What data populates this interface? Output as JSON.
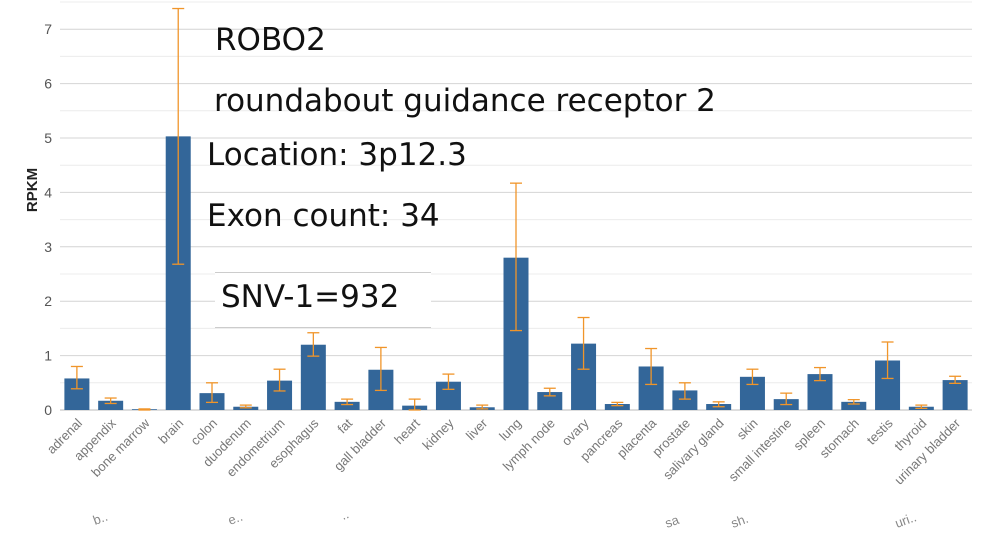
{
  "chart_data": {
    "type": "bar",
    "ylabel": "RPKM",
    "xlabel": "",
    "ylim": [
      0,
      7.5
    ],
    "yticks": [
      0,
      1,
      2,
      3,
      4,
      5,
      6,
      7
    ],
    "categories": [
      "adrenal",
      "appendix",
      "bone marrow",
      "brain",
      "colon",
      "duodenum",
      "endometrium",
      "esophagus",
      "fat",
      "gall bladder",
      "heart",
      "kidney",
      "liver",
      "lung",
      "lymph node",
      "ovary",
      "pancreas",
      "placenta",
      "prostate",
      "salivary gland",
      "skin",
      "small intestine",
      "spleen",
      "stomach",
      "testis",
      "thyroid",
      "urinary bladder"
    ],
    "values": [
      0.58,
      0.17,
      0.01,
      5.03,
      0.31,
      0.06,
      0.54,
      1.2,
      0.15,
      0.74,
      0.08,
      0.52,
      0.05,
      2.8,
      0.33,
      1.22,
      0.11,
      0.8,
      0.36,
      0.11,
      0.61,
      0.2,
      0.66,
      0.15,
      0.91,
      0.06,
      0.55
    ],
    "error_low": [
      0.39,
      0.12,
      0.0,
      2.68,
      0.14,
      0.04,
      0.35,
      0.99,
      0.1,
      0.36,
      0.0,
      0.38,
      0.02,
      1.46,
      0.26,
      0.75,
      0.08,
      0.47,
      0.2,
      0.06,
      0.47,
      0.1,
      0.54,
      0.11,
      0.58,
      0.03,
      0.49
    ],
    "error_high": [
      0.8,
      0.22,
      0.02,
      7.38,
      0.5,
      0.09,
      0.75,
      1.42,
      0.2,
      1.15,
      0.2,
      0.66,
      0.09,
      4.17,
      0.4,
      1.7,
      0.14,
      1.13,
      0.5,
      0.15,
      0.75,
      0.31,
      0.78,
      0.19,
      1.25,
      0.09,
      0.62
    ],
    "grid": true,
    "bar_color": "#336699",
    "error_color": "#f0952a"
  },
  "annotations": {
    "gene_symbol": "ROBO2",
    "gene_name": "roundabout guidance receptor 2",
    "location": "Location: 3p12.3",
    "exon_count": "Exon count: 34",
    "snv": "SNV-1=932"
  },
  "partial_labels": [
    "b..",
    "e..",
    "..",
    "sa",
    "sh.",
    "uri.."
  ]
}
